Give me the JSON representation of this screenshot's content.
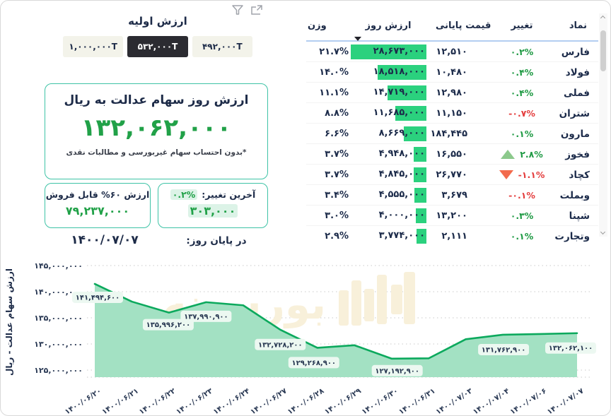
{
  "colors": {
    "accent_green": "#21a148",
    "bar_green": "#2bd17e",
    "line_green": "#0ca95d",
    "area_mint": "#a3e1c3",
    "mint_pill": "#dcf3e7",
    "teal_border": "#3ec3a6",
    "red": "#e43e3e",
    "dark_text": "#1d2b48",
    "tab_selected_bg": "#2b2b31"
  },
  "header": {
    "initial_value_label": "ارزش اولیه",
    "tabs": [
      {
        "label": "۱,۰۰۰,۰۰۰T",
        "selected": false
      },
      {
        "label": "۵۳۲,۰۰۰T",
        "selected": true
      },
      {
        "label": "۴۹۲,۰۰۰T",
        "selected": false
      }
    ]
  },
  "main_value": {
    "title": "ارزش روز سهام عدالت به ریال",
    "value": "۱۳۲,۰۶۲,۰۰۰",
    "footnote": "*بدون احتساب سهام غیربورسی و مطالبات نقدی"
  },
  "last_change": {
    "label": "آخرین تغییر:",
    "percent": "۰.۲%",
    "amount": "۳۰۳,۰۰۰"
  },
  "sellable": {
    "label": "ارزش ۶۰% قابل فروش",
    "value": "۷۹,۲۳۷,۰۰۰"
  },
  "end_of_day": {
    "label": "در پایان روز:",
    "date": "۱۴۰۰/۰۷/۰۷"
  },
  "table": {
    "columns": [
      "نماد",
      "تغییر",
      "قیمت پایانی",
      "ارزش روز",
      "وزن"
    ],
    "sorted_column": "ارزش روز",
    "rows": [
      {
        "symbol": "فارس",
        "change": "۰.۲%",
        "change_dir": "up",
        "triangle": false,
        "price": "۱۲,۵۱۰",
        "day_value": "۲۸,۶۷۳,۰۰۰",
        "day_value_num": 28673000,
        "weight": "۲۱.۷%"
      },
      {
        "symbol": "فولاد",
        "change": "۰.۴%",
        "change_dir": "up",
        "triangle": false,
        "price": "۱۰,۴۸۰",
        "day_value": "۱۸,۵۱۸,۰۰۰",
        "day_value_num": 18518000,
        "weight": "۱۴.۰%"
      },
      {
        "symbol": "فملی",
        "change": "۰.۴%",
        "change_dir": "up",
        "triangle": false,
        "price": "۱۲,۹۸۰",
        "day_value": "۱۴,۷۱۹,۰۰۰",
        "day_value_num": 14719000,
        "weight": "۱۱.۱%"
      },
      {
        "symbol": "شتران",
        "change": "-۰.۷%",
        "change_dir": "down",
        "triangle": false,
        "price": "۱۱,۱۵۰",
        "day_value": "۱۱,۶۸۵,۰۰۰",
        "day_value_num": 11685000,
        "weight": "۸.۸%"
      },
      {
        "symbol": "مارون",
        "change": "۰.۱%",
        "change_dir": "up",
        "triangle": false,
        "price": "۱۸۴,۴۴۵",
        "day_value": "۸,۶۶۹,۰۰۰",
        "day_value_num": 8669000,
        "weight": "۶.۶%"
      },
      {
        "symbol": "فخوز",
        "change": "۲.۸%",
        "change_dir": "up",
        "triangle": true,
        "price": "۱۶,۵۵۰",
        "day_value": "۴,۹۴۸,۰۰۰",
        "day_value_num": 4948000,
        "weight": "۳.۷%"
      },
      {
        "symbol": "کچاد",
        "change": "-۱.۱%",
        "change_dir": "down",
        "triangle": true,
        "price": "۲۶,۷۷۰",
        "day_value": "۴,۸۴۵,۰۰۰",
        "day_value_num": 4845000,
        "weight": "۳.۷%"
      },
      {
        "symbol": "وبملت",
        "change": "-۰.۱%",
        "change_dir": "down",
        "triangle": false,
        "price": "۳,۶۷۹",
        "day_value": "۴,۵۵۵,۰۰۰",
        "day_value_num": 4555000,
        "weight": "۳.۴%"
      },
      {
        "symbol": "شپنا",
        "change": "۰.۳%",
        "change_dir": "up",
        "triangle": false,
        "price": "۱۳,۲۰۰",
        "day_value": "۴,۰۰۰,۰۰۰",
        "day_value_num": 4000000,
        "weight": "۳.۰%"
      },
      {
        "symbol": "وتجارت",
        "change": "۰.۱%",
        "change_dir": "up",
        "triangle": false,
        "price": "۲,۱۱۱",
        "day_value": "۳,۷۷۴,۰۰۰",
        "day_value_num": 3774000,
        "weight": "۲.۹%"
      }
    ]
  },
  "chart_data": {
    "type": "area",
    "title": "",
    "xlabel": "",
    "ylabel": "ارزش سهام عدالت - ریال",
    "ylim": [
      125000000,
      145000000
    ],
    "grid": true,
    "legend": false,
    "ytick_labels": [
      "۱۴۵,۰۰۰,۰۰۰",
      "۱۴۰,۰۰۰,۰۰۰",
      "۱۳۵,۰۰۰,۰۰۰",
      "۱۳۰,۰۰۰,۰۰۰",
      "۱۲۵,۰۰۰,۰۰۰"
    ],
    "categories": [
      "۱۴۰۰/۰۶/۲۰",
      "۱۴۰۰/۰۶/۲۱",
      "۱۴۰۰/۰۶/۲۲",
      "۱۴۰۰/۰۶/۲۳",
      "۱۴۰۰/۰۶/۲۴",
      "۱۴۰۰/۰۶/۲۷",
      "۱۴۰۰/۰۶/۲۸",
      "۱۴۰۰/۰۶/۲۹",
      "۱۴۰۰/۰۶/۳۰",
      "۱۴۰۰/۰۶/۳۱",
      "۱۴۰۰/۰۷/۰۳",
      "۱۴۰۰/۰۷/۰۴",
      "۱۴۰۰/۰۷/۰۶",
      "۱۴۰۰/۰۷/۰۷"
    ],
    "values": [
      141494600,
      138100000,
      135996200,
      137990900,
      137400000,
      132728200,
      129268900,
      129750000,
      127192900,
      127250000,
      130900000,
      131762900,
      131900000,
      132062100
    ],
    "point_labels": [
      {
        "index": 0,
        "text": "۱۴۱,۴۹۴,۶۰۰"
      },
      {
        "index": 2,
        "text": "۱۳۵,۹۹۶,۲۰۰"
      },
      {
        "index": 3,
        "text": "۱۳۷,۹۹۰,۹۰۰"
      },
      {
        "index": 5,
        "text": "۱۳۲,۷۲۸,۲۰۰"
      },
      {
        "index": 6,
        "text": "۱۲۹,۲۶۸,۹۰۰"
      },
      {
        "index": 8,
        "text": "۱۲۷,۱۹۲,۹۰۰"
      },
      {
        "index": 11,
        "text": "۱۳۱,۷۶۲,۹۰۰"
      },
      {
        "index": 13,
        "text": "۱۳۲,۰۶۲,۱۰۰"
      }
    ],
    "line_color": "#0ca95d",
    "fill_color": "#a3e1c3",
    "watermark": "بورسینه"
  }
}
